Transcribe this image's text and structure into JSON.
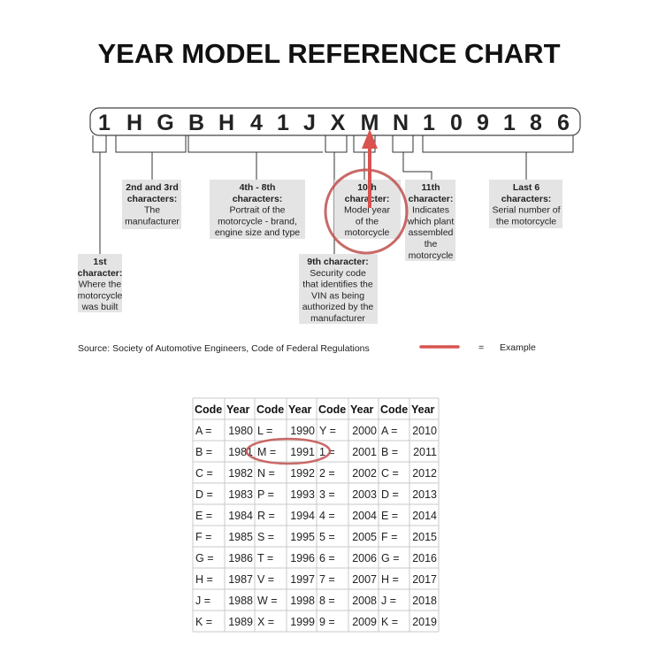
{
  "title": "YEAR MODEL REFERENCE CHART",
  "vin": [
    "1",
    "H",
    "G",
    "B",
    "H",
    "4",
    "1",
    "J",
    "X",
    "M",
    "N",
    "1",
    "0",
    "9",
    "1",
    "8",
    "6"
  ],
  "labels": {
    "first": [
      "1st",
      "character:",
      "Where the",
      "motorcycle",
      "was built"
    ],
    "second_third": [
      "2nd and 3rd",
      "characters:",
      "The",
      "manufacturer"
    ],
    "fourth_eighth": [
      "4th - 8th",
      "characters:",
      "Portrait of the",
      "motorcycle - brand,",
      "engine size and type"
    ],
    "ninth": [
      "9th character:",
      "Security code",
      "that identifies the",
      "VIN as being",
      "authorized by the",
      "manufacturer"
    ],
    "tenth": [
      "10th",
      "character:",
      "Model year",
      "of the",
      "motorcycle"
    ],
    "eleventh": [
      "11th",
      "character:",
      "Indicates",
      "which plant",
      "assembled",
      "the",
      "motorcycle"
    ],
    "last_six": [
      "Last 6",
      "characters:",
      "Serial number of",
      "the motorcycle"
    ]
  },
  "source": "Source:  Society of Automotive Engineers, Code of Federal Regulations",
  "legend": {
    "equals": "=",
    "text": "Example"
  },
  "colors": {
    "highlight": "#c0504d",
    "label_bg": "#e4e4e4"
  },
  "table": {
    "headers": [
      "Code",
      "Year",
      "Code",
      "Year",
      "Code",
      "Year",
      "Code",
      "Year"
    ],
    "rows": [
      [
        "A =",
        "1980",
        "L =",
        "1990",
        "Y =",
        "2000",
        "A =",
        "2010"
      ],
      [
        "B =",
        "1981",
        "M =",
        "1991",
        "1 =",
        "2001",
        "B =",
        "2011"
      ],
      [
        "C =",
        "1982",
        "N =",
        "1992",
        "2 =",
        "2002",
        "C =",
        "2012"
      ],
      [
        "D =",
        "1983",
        "P =",
        "1993",
        "3 =",
        "2003",
        "D =",
        "2013"
      ],
      [
        "E =",
        "1984",
        "R =",
        "1994",
        "4 =",
        "2004",
        "E =",
        "2014"
      ],
      [
        "F =",
        "1985",
        "S =",
        "1995",
        "5 =",
        "2005",
        "F =",
        "2015"
      ],
      [
        "G =",
        "1986",
        "T =",
        "1996",
        "6 =",
        "2006",
        "G =",
        "2016"
      ],
      [
        "H =",
        "1987",
        "V =",
        "1997",
        "7 =",
        "2007",
        "H =",
        "2017"
      ],
      [
        "J =",
        "1988",
        "W =",
        "1998",
        "8 =",
        "2008",
        "J =",
        "2018"
      ],
      [
        "K =",
        "1989",
        "X =",
        "1999",
        "9 =",
        "2009",
        "K =",
        "2019"
      ]
    ]
  }
}
